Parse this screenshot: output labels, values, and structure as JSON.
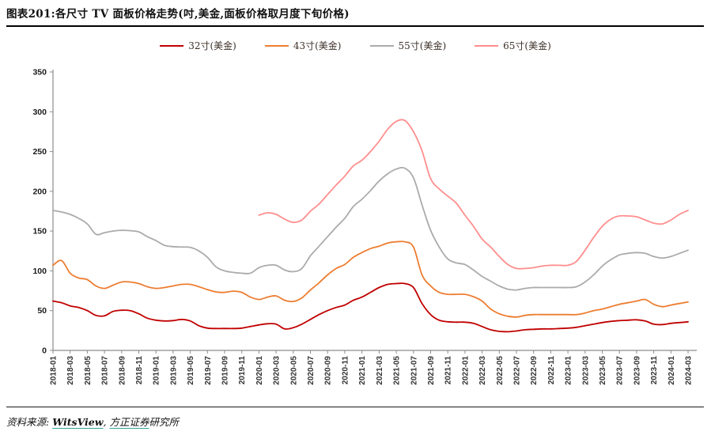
{
  "header": {
    "title": "图表201:各尺寸 TV 面板价格走势(吋,美金,面板价格取月度下旬价格)"
  },
  "legend": [
    {
      "label": "32寸(美金)",
      "color": "#c00000"
    },
    {
      "label": "43寸(美金)",
      "color": "#ed7d31"
    },
    {
      "label": "55寸(美金)",
      "color": "#ababab"
    },
    {
      "label": "65寸(美金)",
      "color": "#ff8e8e"
    }
  ],
  "footer": {
    "prefix": "资料来源: ",
    "link1": "WitsView",
    "separator": ", ",
    "link2": "方正证券",
    "suffix": "研究所"
  },
  "chart_data": {
    "type": "line",
    "title": "图表201:各尺寸 TV 面板价格走势(吋,美金,面板价格取月度下旬价格)",
    "xlabel": "",
    "ylabel": "",
    "ylim": [
      0,
      350
    ],
    "yticks": [
      0,
      50,
      100,
      150,
      200,
      250,
      300,
      350
    ],
    "grid": false,
    "legend_position": "top",
    "x_tick_every": 2,
    "x": [
      "2018-01",
      "2018-02",
      "2018-03",
      "2018-04",
      "2018-05",
      "2018-06",
      "2018-07",
      "2018-08",
      "2018-09",
      "2018-10",
      "2018-11",
      "2018-12",
      "2019-01",
      "2019-02",
      "2019-03",
      "2019-04",
      "2019-05",
      "2019-06",
      "2019-07",
      "2019-08",
      "2019-09",
      "2019-10",
      "2019-11",
      "2019-12",
      "2020-01",
      "2020-02",
      "2020-03",
      "2020-04",
      "2020-05",
      "2020-06",
      "2020-07",
      "2020-08",
      "2020-09",
      "2020-10",
      "2020-11",
      "2020-12",
      "2021-01",
      "2021-02",
      "2021-03",
      "2021-04",
      "2021-05",
      "2021-06",
      "2021-07",
      "2021-08",
      "2021-09",
      "2021-10",
      "2021-11",
      "2021-12",
      "2022-01",
      "2022-02",
      "2022-03",
      "2022-04",
      "2022-05",
      "2022-06",
      "2022-07",
      "2022-08",
      "2022-09",
      "2022-10",
      "2022-11",
      "2022-12",
      "2023-01",
      "2023-02",
      "2023-03",
      "2023-04",
      "2023-05",
      "2023-06",
      "2023-07",
      "2023-08",
      "2023-09",
      "2023-10",
      "2023-11",
      "2023-12",
      "2024-01",
      "2024-02",
      "2024-03"
    ],
    "series": [
      {
        "name": "32寸(美金)",
        "color": "#c00000",
        "values": [
          62,
          60,
          56,
          54,
          50,
          44,
          43.5,
          49,
          50.5,
          50,
          46,
          40.5,
          38,
          37,
          37.5,
          39,
          37,
          31,
          28,
          27.5,
          27.5,
          27.5,
          28,
          30,
          32,
          33.5,
          33,
          27,
          28.5,
          33,
          39,
          45,
          50,
          54,
          57,
          63,
          67,
          73,
          79,
          83,
          84,
          84,
          79,
          59,
          45,
          38,
          36,
          35.5,
          35.5,
          34,
          30,
          26,
          24,
          23.5,
          24.5,
          26,
          26.5,
          27,
          27,
          27.5,
          28,
          29,
          31,
          33,
          35,
          36.5,
          37.5,
          38,
          38.5,
          37,
          33,
          32.5,
          34,
          35,
          36
        ]
      },
      {
        "name": "43寸(美金)",
        "color": "#ed7d31",
        "values": [
          107,
          113,
          97,
          91,
          89,
          81,
          78,
          82,
          86,
          86,
          84,
          80,
          78,
          79,
          81,
          83,
          83,
          80,
          76.5,
          73.5,
          73,
          74.5,
          73,
          67,
          64,
          67,
          68.5,
          63,
          61.5,
          66,
          76,
          85,
          95,
          103,
          108,
          117,
          123,
          128,
          131,
          135,
          136.5,
          136.5,
          130,
          95,
          81,
          73,
          70.5,
          70.5,
          70.5,
          67.5,
          62,
          52,
          46,
          43,
          42,
          44,
          45,
          45,
          45,
          45,
          45,
          45,
          47,
          50,
          52,
          55,
          58,
          60,
          62,
          64,
          58,
          55,
          57,
          59,
          61
        ]
      },
      {
        "name": "55寸(美金)",
        "color": "#ababab",
        "values": [
          176,
          174,
          171,
          166,
          159,
          146,
          148,
          150,
          151,
          150.5,
          149,
          143,
          138,
          132,
          130.5,
          130,
          129.5,
          125,
          117,
          105,
          100,
          98,
          97,
          97,
          104,
          107,
          107,
          101,
          99,
          103,
          119,
          131,
          143,
          155,
          166,
          181,
          190,
          201,
          213,
          222,
          228,
          229,
          217,
          183,
          151,
          130,
          115,
          110,
          108,
          101,
          93,
          87,
          81,
          77,
          76,
          78,
          79,
          79,
          79,
          79,
          79,
          80,
          86,
          95,
          106,
          114,
          120,
          122,
          123,
          122,
          118,
          116,
          118,
          122,
          126
        ]
      },
      {
        "name": "65寸(美金)",
        "color": "#ff8e8e",
        "values": [
          null,
          null,
          null,
          null,
          null,
          null,
          null,
          null,
          null,
          null,
          null,
          null,
          null,
          null,
          null,
          null,
          null,
          null,
          null,
          null,
          null,
          null,
          null,
          null,
          170,
          173,
          171,
          165,
          161,
          164,
          175,
          184,
          196,
          208,
          219,
          232,
          239,
          250,
          263,
          278,
          288,
          289,
          275,
          251,
          216,
          203,
          194,
          185,
          170,
          156,
          140,
          130,
          118,
          108,
          103,
          103,
          104,
          106,
          107,
          107,
          107,
          112,
          126,
          142,
          156,
          165,
          169,
          169,
          168,
          164,
          160,
          159,
          164,
          171,
          176
        ]
      }
    ]
  }
}
